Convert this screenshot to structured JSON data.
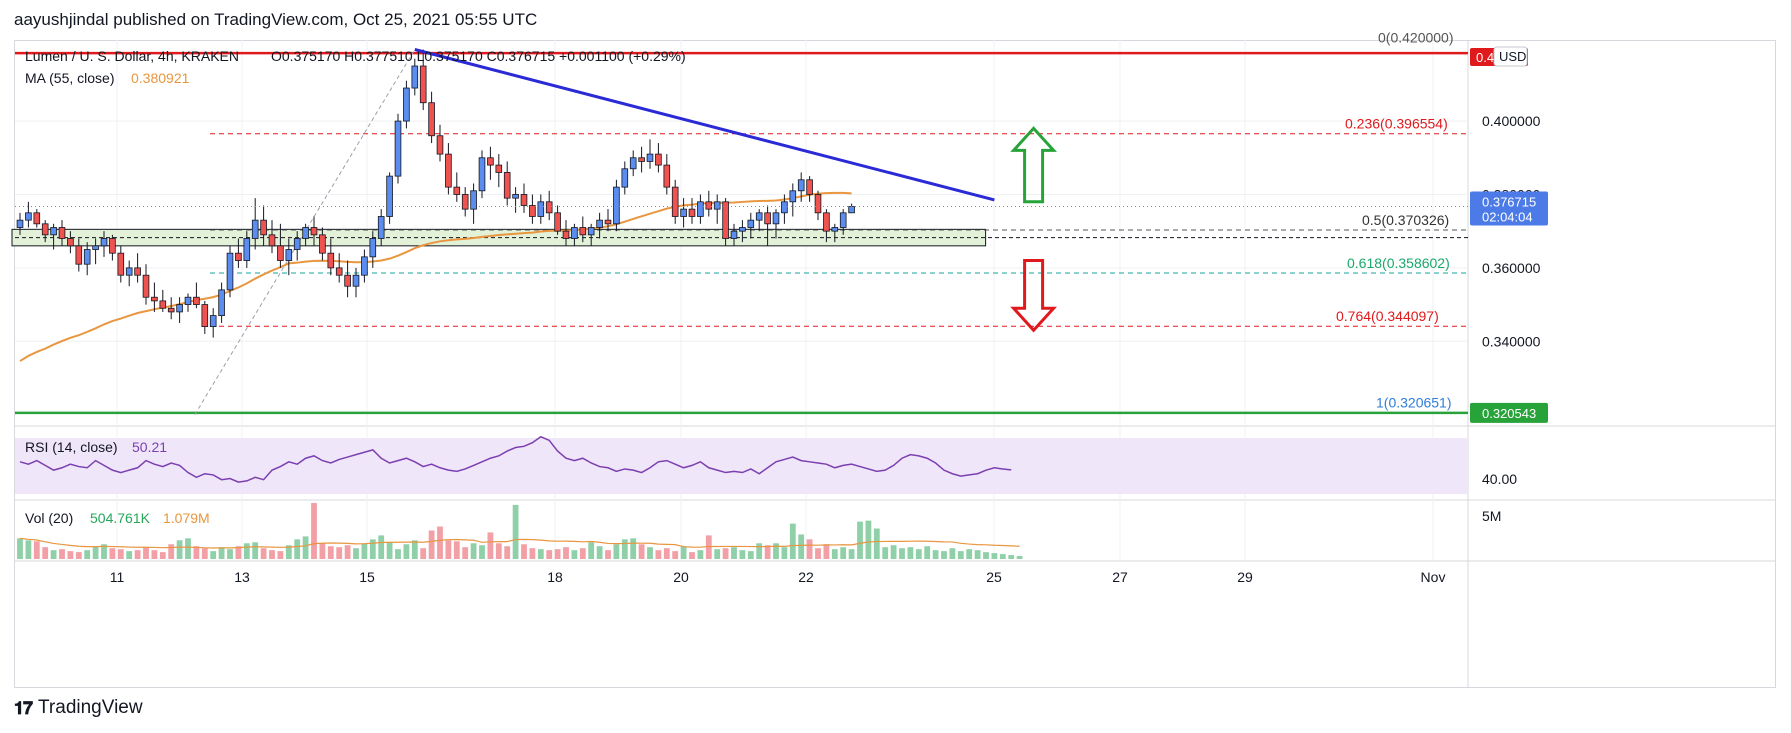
{
  "header": "aayushjindal published on TradingView.com, Oct 25, 2021 05:55 UTC",
  "footer": {
    "brand": "TradingView"
  },
  "colors": {
    "up": "#5b8def",
    "down": "#ef5350",
    "ma": "#e8963f",
    "trend": "#2a2ad6",
    "resistance": "#e0191c",
    "support": "#27a33a",
    "fib": "#e0191c",
    "fib618": "#27a33a",
    "rsi": "#7b3fb0",
    "vol_up": "#8fd0a8",
    "vol_down": "#f2a0a6"
  },
  "chart_data": {
    "type": "candlestick",
    "symbol": "Lumen / U. S. Dollar, 4h, KRAKEN",
    "ohlc": {
      "open": "O0.375170",
      "high": "H0.377510",
      "low": "L0.375170",
      "close": "C0.376715",
      "change": "+0.001100 (+0.29%)"
    },
    "ma": {
      "label": "MA (55, close)",
      "value": "0.380921"
    },
    "price_scale": {
      "unit": "USD",
      "ticks": [
        "0.400000",
        "0.380000",
        "0.360000",
        "0.340000"
      ],
      "ylim": [
        0.318,
        0.421
      ]
    },
    "last_price": {
      "value": "0.376715",
      "countdown": "02:04:04"
    },
    "resistance_label": "0.4...58",
    "support_label": "0.320543",
    "fib_levels": [
      {
        "ratio": "0",
        "price": "0.420000",
        "label": "0(0.420000)"
      },
      {
        "ratio": "0.236",
        "price": "0.396554",
        "label": "0.236(0.396554)"
      },
      {
        "ratio": "0.5",
        "price": "0.370326",
        "label": "0.5(0.370326)"
      },
      {
        "ratio": "0.618",
        "price": "0.358602",
        "label": "0.618(0.358602)"
      },
      {
        "ratio": "0.764",
        "price": "0.344097",
        "label": "0.764(0.344097)"
      },
      {
        "ratio": "1",
        "price": "0.320651",
        "label": "1(0.320651)"
      }
    ],
    "x_ticks": [
      "11",
      "13",
      "15",
      "18",
      "20",
      "22",
      "25",
      "27",
      "29",
      "Nov"
    ],
    "candles": [
      [
        0.371,
        0.375,
        0.369,
        0.373
      ],
      [
        0.373,
        0.378,
        0.371,
        0.375
      ],
      [
        0.375,
        0.376,
        0.371,
        0.372
      ],
      [
        0.372,
        0.373,
        0.367,
        0.369
      ],
      [
        0.369,
        0.372,
        0.365,
        0.371
      ],
      [
        0.371,
        0.373,
        0.366,
        0.368
      ],
      [
        0.368,
        0.37,
        0.364,
        0.366
      ],
      [
        0.366,
        0.368,
        0.359,
        0.361
      ],
      [
        0.361,
        0.367,
        0.358,
        0.365
      ],
      [
        0.365,
        0.368,
        0.361,
        0.366
      ],
      [
        0.366,
        0.37,
        0.363,
        0.368
      ],
      [
        0.368,
        0.369,
        0.362,
        0.364
      ],
      [
        0.364,
        0.366,
        0.356,
        0.358
      ],
      [
        0.358,
        0.362,
        0.355,
        0.36
      ],
      [
        0.36,
        0.364,
        0.356,
        0.358
      ],
      [
        0.358,
        0.361,
        0.35,
        0.352
      ],
      [
        0.352,
        0.356,
        0.348,
        0.351
      ],
      [
        0.351,
        0.354,
        0.348,
        0.349
      ],
      [
        0.349,
        0.352,
        0.346,
        0.348
      ],
      [
        0.348,
        0.352,
        0.345,
        0.35
      ],
      [
        0.35,
        0.353,
        0.348,
        0.352
      ],
      [
        0.352,
        0.356,
        0.349,
        0.35
      ],
      [
        0.35,
        0.351,
        0.342,
        0.344
      ],
      [
        0.344,
        0.349,
        0.341,
        0.347
      ],
      [
        0.347,
        0.356,
        0.345,
        0.354
      ],
      [
        0.354,
        0.366,
        0.352,
        0.364
      ],
      [
        0.364,
        0.368,
        0.36,
        0.362
      ],
      [
        0.362,
        0.37,
        0.36,
        0.368
      ],
      [
        0.368,
        0.379,
        0.365,
        0.373
      ],
      [
        0.373,
        0.377,
        0.366,
        0.369
      ],
      [
        0.369,
        0.373,
        0.364,
        0.366
      ],
      [
        0.366,
        0.372,
        0.36,
        0.362
      ],
      [
        0.362,
        0.368,
        0.358,
        0.365
      ],
      [
        0.365,
        0.37,
        0.362,
        0.368
      ],
      [
        0.368,
        0.372,
        0.366,
        0.371
      ],
      [
        0.371,
        0.374,
        0.366,
        0.369
      ],
      [
        0.369,
        0.371,
        0.362,
        0.364
      ],
      [
        0.364,
        0.368,
        0.358,
        0.36
      ],
      [
        0.36,
        0.364,
        0.356,
        0.358
      ],
      [
        0.358,
        0.362,
        0.352,
        0.355
      ],
      [
        0.355,
        0.36,
        0.352,
        0.358
      ],
      [
        0.358,
        0.365,
        0.356,
        0.363
      ],
      [
        0.363,
        0.37,
        0.36,
        0.368
      ],
      [
        0.368,
        0.376,
        0.366,
        0.374
      ],
      [
        0.374,
        0.386,
        0.372,
        0.385
      ],
      [
        0.385,
        0.402,
        0.383,
        0.4
      ],
      [
        0.4,
        0.411,
        0.398,
        0.409
      ],
      [
        0.409,
        0.417,
        0.407,
        0.415
      ],
      [
        0.415,
        0.4195,
        0.403,
        0.405
      ],
      [
        0.405,
        0.408,
        0.394,
        0.396
      ],
      [
        0.396,
        0.399,
        0.389,
        0.391
      ],
      [
        0.391,
        0.394,
        0.38,
        0.382
      ],
      [
        0.382,
        0.386,
        0.378,
        0.38
      ],
      [
        0.38,
        0.382,
        0.374,
        0.376
      ],
      [
        0.376,
        0.383,
        0.372,
        0.381
      ],
      [
        0.381,
        0.392,
        0.379,
        0.39
      ],
      [
        0.39,
        0.393,
        0.384,
        0.388
      ],
      [
        0.388,
        0.391,
        0.382,
        0.386
      ],
      [
        0.386,
        0.389,
        0.377,
        0.379
      ],
      [
        0.379,
        0.382,
        0.375,
        0.38
      ],
      [
        0.38,
        0.383,
        0.375,
        0.377
      ],
      [
        0.377,
        0.38,
        0.372,
        0.374
      ],
      [
        0.374,
        0.38,
        0.372,
        0.378
      ],
      [
        0.378,
        0.381,
        0.373,
        0.375
      ],
      [
        0.375,
        0.377,
        0.369,
        0.37
      ],
      [
        0.37,
        0.373,
        0.366,
        0.368
      ],
      [
        0.368,
        0.372,
        0.366,
        0.371
      ],
      [
        0.371,
        0.374,
        0.367,
        0.369
      ],
      [
        0.369,
        0.372,
        0.366,
        0.371
      ],
      [
        0.371,
        0.375,
        0.368,
        0.373
      ],
      [
        0.373,
        0.376,
        0.37,
        0.372
      ],
      [
        0.372,
        0.384,
        0.37,
        0.382
      ],
      [
        0.382,
        0.389,
        0.38,
        0.387
      ],
      [
        0.387,
        0.392,
        0.385,
        0.39
      ],
      [
        0.39,
        0.393,
        0.386,
        0.389
      ],
      [
        0.389,
        0.395,
        0.387,
        0.391
      ],
      [
        0.391,
        0.394,
        0.386,
        0.388
      ],
      [
        0.388,
        0.391,
        0.38,
        0.382
      ],
      [
        0.382,
        0.384,
        0.372,
        0.374
      ],
      [
        0.374,
        0.379,
        0.371,
        0.376
      ],
      [
        0.376,
        0.379,
        0.372,
        0.374
      ],
      [
        0.374,
        0.38,
        0.372,
        0.378
      ],
      [
        0.378,
        0.381,
        0.374,
        0.376
      ],
      [
        0.376,
        0.38,
        0.372,
        0.378
      ],
      [
        0.378,
        0.379,
        0.366,
        0.368
      ],
      [
        0.368,
        0.372,
        0.366,
        0.37
      ],
      [
        0.37,
        0.373,
        0.367,
        0.371
      ],
      [
        0.371,
        0.375,
        0.368,
        0.373
      ],
      [
        0.373,
        0.376,
        0.37,
        0.375
      ],
      [
        0.375,
        0.377,
        0.366,
        0.372
      ],
      [
        0.372,
        0.376,
        0.368,
        0.375
      ],
      [
        0.375,
        0.38,
        0.372,
        0.378
      ],
      [
        0.378,
        0.383,
        0.374,
        0.381
      ],
      [
        0.381,
        0.386,
        0.378,
        0.384
      ],
      [
        0.384,
        0.385,
        0.378,
        0.38
      ],
      [
        0.38,
        0.381,
        0.373,
        0.375
      ],
      [
        0.375,
        0.376,
        0.367,
        0.37
      ],
      [
        0.37,
        0.372,
        0.367,
        0.371
      ],
      [
        0.371,
        0.376,
        0.369,
        0.375
      ],
      [
        0.375,
        0.3775,
        0.3752,
        0.3767
      ]
    ],
    "trendline": {
      "from": {
        "candle": 47,
        "price": 0.4195
      },
      "to": {
        "candle": 116,
        "price": 0.3785
      }
    },
    "box": {
      "from_candle": 0,
      "to_candle": 114,
      "low": 0.366,
      "high": 0.3705
    },
    "arrows": [
      {
        "direction": "up",
        "candle": 119,
        "price_from": 0.378,
        "price_to": 0.398
      },
      {
        "direction": "down",
        "candle": 119,
        "price_from": 0.362,
        "price_to": 0.343
      }
    ],
    "rsi": {
      "label": "RSI (14, close)",
      "value": "50.21",
      "tick": "40.00",
      "values": [
        57,
        55,
        58,
        54,
        50,
        52,
        55,
        53,
        52,
        58,
        54,
        50,
        48,
        50,
        52,
        58,
        55,
        53,
        56,
        54,
        48,
        44,
        47,
        46,
        42,
        43,
        40,
        41,
        44,
        42,
        50,
        53,
        57,
        55,
        60,
        62,
        58,
        56,
        59,
        61,
        63,
        65,
        67,
        60,
        56,
        58,
        60,
        57,
        53,
        55,
        52,
        50,
        49,
        51,
        54,
        57,
        60,
        62,
        66,
        69,
        70,
        73,
        78,
        75,
        66,
        60,
        58,
        60,
        56,
        53,
        52,
        49,
        51,
        50,
        48,
        52,
        57,
        58,
        55,
        52,
        54,
        57,
        52,
        50,
        48,
        49,
        48,
        51,
        47,
        52,
        57,
        59,
        61,
        58,
        57,
        56,
        55,
        52,
        54,
        55,
        53,
        51,
        49,
        50,
        54,
        60,
        63,
        62,
        60,
        56,
        50,
        47,
        45,
        46,
        47,
        50,
        52,
        51,
        50.21
      ]
    },
    "volume": {
      "label": "Vol (20)",
      "value1": "504.761K",
      "value2": "1.079M",
      "tick": "5M",
      "values": [
        2.1,
        1.9,
        1.8,
        1.2,
        0.9,
        1.0,
        0.8,
        0.7,
        0.9,
        1.3,
        1.5,
        1.1,
        1.0,
        0.8,
        0.9,
        1.2,
        0.9,
        0.7,
        1.5,
        1.9,
        2.1,
        1.3,
        1.1,
        0.8,
        1.2,
        1.0,
        1.3,
        1.6,
        1.7,
        1.1,
        0.9,
        0.8,
        1.4,
        2.0,
        2.3,
        5.7,
        1.6,
        1.3,
        1.2,
        1.4,
        1.1,
        1.6,
        2.0,
        2.4,
        1.7,
        1.0,
        1.5,
        1.9,
        1.1,
        2.9,
        3.3,
        1.9,
        1.8,
        1.2,
        1.6,
        1.4,
        2.7,
        1.6,
        1.3,
        5.5,
        1.5,
        1.1,
        1.0,
        0.9,
        1.0,
        1.2,
        0.9,
        1.1,
        1.7,
        1.3,
        0.9,
        1.5,
        2.0,
        2.1,
        1.5,
        1.2,
        0.9,
        1.1,
        0.8,
        1.3,
        0.7,
        0.9,
        2.4,
        1.0,
        1.1,
        1.2,
        0.9,
        0.8,
        1.6,
        1.4,
        1.6,
        1.2,
        3.6,
        2.5,
        2.0,
        1.1,
        1.5,
        1.0,
        1.2,
        1.0,
        3.8,
        3.9,
        3.1,
        1.2,
        1.4,
        1.1,
        1.2,
        1.0,
        1.3,
        0.9,
        0.8,
        1.1,
        0.8,
        1.0,
        0.9,
        0.7,
        0.6,
        0.5,
        0.4,
        0.3
      ]
    }
  }
}
